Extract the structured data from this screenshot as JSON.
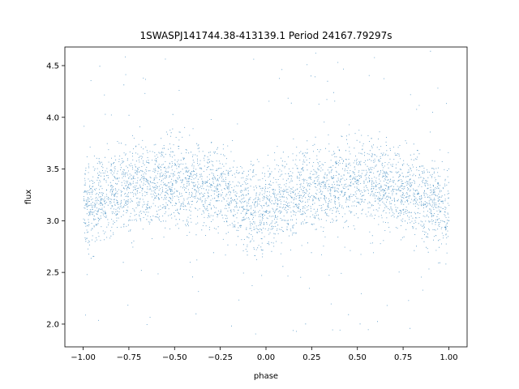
{
  "chart_data": {
    "type": "scatter",
    "title": "1SWASPJ141744.38-413139.1 Period 24167.79297s",
    "xlabel": "phase",
    "ylabel": "flux",
    "xlim": [
      -1.1,
      1.1
    ],
    "ylim": [
      1.78,
      4.68
    ],
    "x_ticks": [
      -1.0,
      -0.75,
      -0.5,
      -0.25,
      0.0,
      0.25,
      0.5,
      0.75,
      1.0
    ],
    "x_tick_labels": [
      "−1.00",
      "−0.75",
      "−0.50",
      "−0.25",
      "0.00",
      "0.25",
      "0.50",
      "0.75",
      "1.00"
    ],
    "y_ticks": [
      2.0,
      2.5,
      3.0,
      3.5,
      4.0,
      4.5
    ],
    "y_tick_labels": [
      "2.0",
      "2.5",
      "3.0",
      "3.5",
      "4.0",
      "4.5"
    ],
    "grid": false,
    "legend": "none",
    "marker_color": "#1f77b4",
    "series": [
      {
        "phase_range": [
          -1.0,
          1.0
        ],
        "median_flux_profile": {
          "x": [
            -1.0,
            -0.9,
            -0.8,
            -0.7,
            -0.6,
            -0.5,
            -0.4,
            -0.3,
            -0.2,
            -0.1,
            0.0,
            0.1,
            0.2,
            0.3,
            0.4,
            0.5,
            0.6,
            0.7,
            0.8,
            0.9,
            1.0
          ],
          "y": [
            3.1,
            3.22,
            3.3,
            3.35,
            3.37,
            3.37,
            3.35,
            3.32,
            3.25,
            3.15,
            3.05,
            3.2,
            3.3,
            3.35,
            3.37,
            3.37,
            3.35,
            3.32,
            3.25,
            3.18,
            3.1
          ]
        },
        "scatter_std": 0.2,
        "outlier_range": [
          1.9,
          4.65
        ]
      }
    ]
  }
}
